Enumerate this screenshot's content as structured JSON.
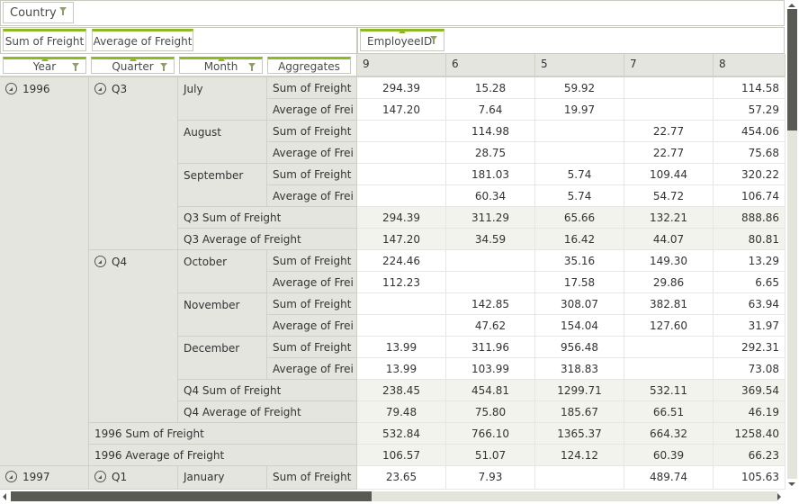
{
  "filter_zone": {
    "fields": [
      {
        "label": "Country"
      }
    ]
  },
  "data_zone": {
    "fields": [
      {
        "label": "Sum of Freight"
      },
      {
        "label": "Average of Freight"
      }
    ]
  },
  "column_zone": {
    "fields": [
      {
        "label": "EmployeeID"
      }
    ]
  },
  "row_zone": {
    "fields": [
      {
        "label": "Year"
      },
      {
        "label": "Quarter"
      },
      {
        "label": "Month"
      },
      {
        "label": "Aggregates"
      }
    ]
  },
  "columns": [
    "9",
    "6",
    "5",
    "7",
    "8"
  ],
  "row_headers": {
    "y1996": "1996",
    "q3": "Q3",
    "q4": "Q4",
    "july": "July",
    "august": "August",
    "september": "September",
    "october": "October",
    "november": "November",
    "december": "December",
    "sum": "Sum of Freight",
    "avg": "Average of Frei",
    "q3_sum": "Q3 Sum of Freight",
    "q3_avg": "Q3 Average of Freight",
    "q4_sum": "Q4 Sum of Freight",
    "q4_avg": "Q4 Average of Freight",
    "y1996_sum": "1996 Sum of Freight",
    "y1996_avg": "1996 Average of Freight",
    "y1997": "1997",
    "q1": "Q1",
    "january": "January"
  },
  "rows": [
    {
      "values": [
        "294.39",
        "15.28",
        "59.92",
        "",
        "114.58"
      ]
    },
    {
      "values": [
        "147.20",
        "7.64",
        "19.97",
        "",
        "57.29"
      ]
    },
    {
      "values": [
        "",
        "114.98",
        "",
        "22.77",
        "454.06"
      ]
    },
    {
      "values": [
        "",
        "28.75",
        "",
        "22.77",
        "75.68"
      ]
    },
    {
      "values": [
        "",
        "181.03",
        "5.74",
        "109.44",
        "320.22"
      ]
    },
    {
      "values": [
        "",
        "60.34",
        "5.74",
        "54.72",
        "106.74"
      ]
    },
    {
      "values": [
        "294.39",
        "311.29",
        "65.66",
        "132.21",
        "888.86"
      ]
    },
    {
      "values": [
        "147.20",
        "34.59",
        "16.42",
        "44.07",
        "80.81"
      ]
    },
    {
      "values": [
        "224.46",
        "",
        "35.16",
        "149.30",
        "13.29"
      ]
    },
    {
      "values": [
        "112.23",
        "",
        "17.58",
        "29.86",
        "6.65"
      ]
    },
    {
      "values": [
        "",
        "142.85",
        "308.07",
        "382.81",
        "63.94"
      ]
    },
    {
      "values": [
        "",
        "47.62",
        "154.04",
        "127.60",
        "31.97"
      ]
    },
    {
      "values": [
        "13.99",
        "311.96",
        "956.48",
        "",
        "292.31"
      ]
    },
    {
      "values": [
        "13.99",
        "103.99",
        "318.83",
        "",
        "73.08"
      ]
    },
    {
      "values": [
        "238.45",
        "454.81",
        "1299.71",
        "532.11",
        "369.54"
      ]
    },
    {
      "values": [
        "79.48",
        "75.80",
        "185.67",
        "66.51",
        "46.19"
      ]
    },
    {
      "values": [
        "532.84",
        "766.10",
        "1365.37",
        "664.32",
        "1258.40"
      ]
    },
    {
      "values": [
        "106.57",
        "51.07",
        "124.12",
        "60.39",
        "66.23"
      ]
    },
    {
      "values": [
        "23.65",
        "7.93",
        "",
        "489.74",
        "105.63"
      ]
    }
  ],
  "colors": {
    "accent": "#8dba24",
    "header_bg": "#e4e5de",
    "total_bg": "#f2f3ec",
    "scroll_thumb": "#585a53"
  }
}
